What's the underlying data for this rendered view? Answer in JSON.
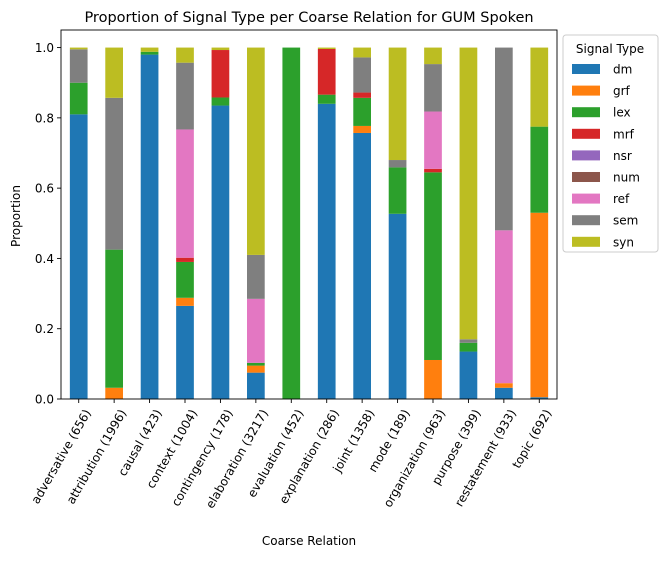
{
  "chart_data": {
    "type": "bar",
    "stacked": true,
    "title": "Proportion of Signal Type per Coarse Relation for GUM Spoken",
    "xlabel": "Coarse Relation",
    "ylabel": "Proportion",
    "ylim": [
      0,
      1.05
    ],
    "yticks": [
      "0.0",
      "0.2",
      "0.4",
      "0.6",
      "0.8",
      "1.0"
    ],
    "grid": false,
    "legend": {
      "title": "Signal Type",
      "placement": "outside-right-top"
    },
    "categories": [
      "adversative (656)",
      "attribution (1996)",
      "causal (423)",
      "context (1004)",
      "contingency (178)",
      "elaboration (3217)",
      "evaluation (452)",
      "explanation (286)",
      "joint (1358)",
      "mode (189)",
      "organization (963)",
      "purpose (399)",
      "restatement (933)",
      "topic (692)"
    ],
    "series": [
      {
        "name": "dm",
        "color": "#1f77b4",
        "values": [
          0.81,
          0.0,
          0.98,
          0.265,
          0.835,
          0.075,
          0.0,
          0.84,
          0.757,
          0.527,
          0.0,
          0.135,
          0.032,
          0.005
        ]
      },
      {
        "name": "grf",
        "color": "#ff7f0e",
        "values": [
          0.0,
          0.032,
          0.0,
          0.023,
          0.0,
          0.02,
          0.0,
          0.0,
          0.02,
          0.0,
          0.111,
          0.0,
          0.013,
          0.525
        ]
      },
      {
        "name": "lex",
        "color": "#2ca02c",
        "values": [
          0.09,
          0.393,
          0.008,
          0.102,
          0.023,
          0.008,
          1.0,
          0.026,
          0.08,
          0.132,
          0.534,
          0.025,
          0.0,
          0.245
        ]
      },
      {
        "name": "mrf",
        "color": "#d62728",
        "values": [
          0.0,
          0.0,
          0.0,
          0.012,
          0.135,
          0.0,
          0.0,
          0.13,
          0.015,
          0.0,
          0.01,
          0.0,
          0.0,
          0.0
        ]
      },
      {
        "name": "nsr",
        "color": "#9467bd",
        "values": [
          0.0,
          0.0,
          0.0,
          0.0,
          0.0,
          0.0,
          0.0,
          0.0,
          0.0,
          0.0,
          0.0,
          0.0,
          0.0,
          0.0
        ]
      },
      {
        "name": "num",
        "color": "#8c564b",
        "values": [
          0.0,
          0.0,
          0.0,
          0.0,
          0.0,
          0.0,
          0.0,
          0.0,
          0.0,
          0.0,
          0.0,
          0.0,
          0.0,
          0.0
        ]
      },
      {
        "name": "ref",
        "color": "#e377c2",
        "values": [
          0.0,
          0.0,
          0.0,
          0.365,
          0.0,
          0.182,
          0.0,
          0.0,
          0.0,
          0.0,
          0.163,
          0.0,
          0.435,
          0.0
        ]
      },
      {
        "name": "sem",
        "color": "#7f7f7f",
        "values": [
          0.095,
          0.432,
          0.0,
          0.19,
          0.0,
          0.125,
          0.0,
          0.0,
          0.1,
          0.021,
          0.135,
          0.01,
          0.52,
          0.0
        ]
      },
      {
        "name": "syn",
        "color": "#bcbd22",
        "values": [
          0.005,
          0.143,
          0.012,
          0.043,
          0.007,
          0.59,
          0.0,
          0.004,
          0.028,
          0.32,
          0.047,
          0.83,
          0.0,
          0.225
        ]
      }
    ]
  }
}
